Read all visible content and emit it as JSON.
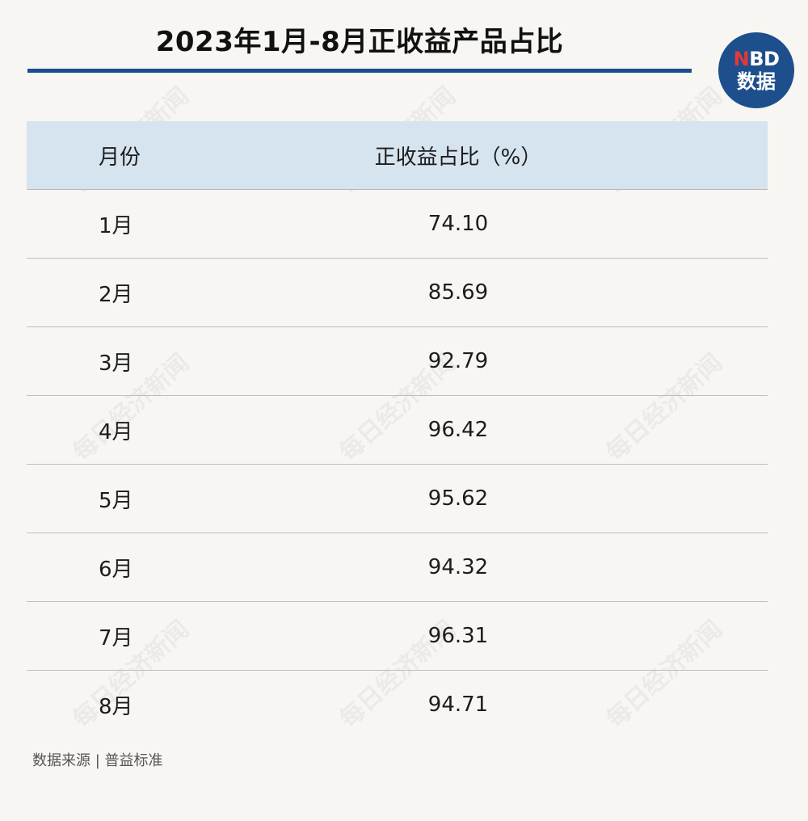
{
  "title": "2023年1月-8月正收益产品占比",
  "logo": {
    "en_n": "N",
    "en_rest": "BD",
    "cn": "数据"
  },
  "table": {
    "headers": [
      "月份",
      "正收益占比（%）"
    ],
    "rows": [
      {
        "month": "1月",
        "value": "74.10"
      },
      {
        "month": "2月",
        "value": "85.69"
      },
      {
        "month": "3月",
        "value": "92.79"
      },
      {
        "month": "4月",
        "value": "96.42"
      },
      {
        "month": "5月",
        "value": "95.62"
      },
      {
        "month": "6月",
        "value": "94.32"
      },
      {
        "month": "7月",
        "value": "96.31"
      },
      {
        "month": "8月",
        "value": "94.71"
      }
    ]
  },
  "source": "数据来源 | 普益标准",
  "watermark": "每日经济新闻"
}
